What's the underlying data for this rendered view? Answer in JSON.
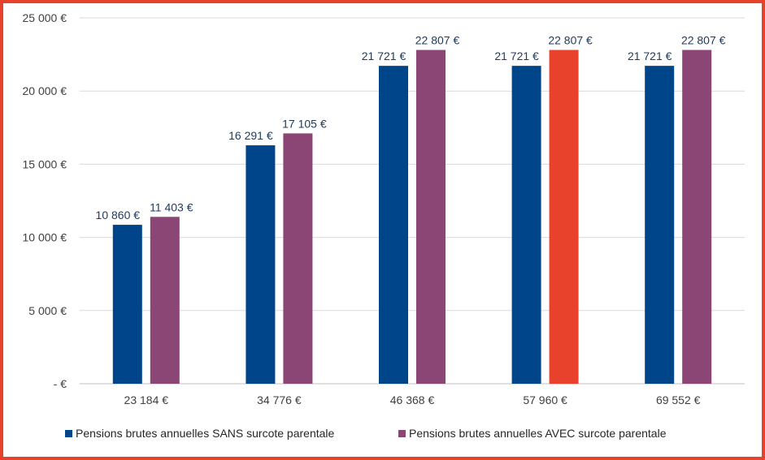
{
  "chart_data": {
    "type": "bar",
    "title": "",
    "xlabel": "",
    "ylabel": "",
    "categories": [
      "23 184 €",
      "34 776 €",
      "46 368 €",
      "57 960 €",
      "69 552 €"
    ],
    "series": [
      {
        "name": "Pensions brutes annuelles SANS surcote parentale",
        "color": "#00458a",
        "values": [
          10860,
          16291,
          21721,
          21721,
          21721
        ],
        "labels": [
          "10 860 €",
          "16 291 €",
          "21 721 €",
          "21 721 €",
          "21 721 €"
        ]
      },
      {
        "name": "Pensions brutes annuelles AVEC surcote parentale",
        "color": "#8c4675",
        "values": [
          11403,
          17105,
          22807,
          22807,
          22807
        ],
        "labels": [
          "11 403 €",
          "17 105 €",
          "22 807 €",
          "22 807 €",
          "22 807 €"
        ]
      }
    ],
    "highlight": {
      "series": 1,
      "category": 3,
      "color": "#e8412c"
    },
    "ylim": [
      0,
      25000
    ],
    "yticks": [
      0,
      5000,
      10000,
      15000,
      20000,
      25000
    ],
    "ytick_labels": [
      "-  €",
      "5 000 €",
      "10 000 €",
      "15 000 €",
      "20 000 €",
      "25 000 €"
    ],
    "grid": true,
    "legend_position": "bottom"
  },
  "frame": {
    "border_color": "#e8412c"
  }
}
